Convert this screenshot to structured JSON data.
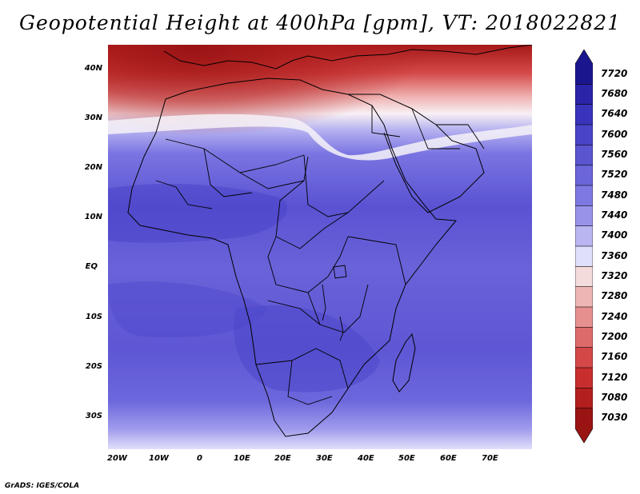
{
  "title": "Geopotential Height at 400hPa [gpm], VT: 2018022821",
  "credit": "GrADS: IGES/COLA",
  "map": {
    "lat_labels": [
      "40N",
      "30N",
      "20N",
      "10N",
      "EQ",
      "10S",
      "20S",
      "30S"
    ],
    "lon_labels": [
      "20W",
      "10W",
      "0",
      "10E",
      "20E",
      "30E",
      "40E",
      "50E",
      "60E",
      "70E"
    ]
  },
  "colorbar": {
    "labels": [
      "7720",
      "7680",
      "7640",
      "7600",
      "7560",
      "7520",
      "7480",
      "7440",
      "7400",
      "7360",
      "7320",
      "7280",
      "7240",
      "7200",
      "7160",
      "7120",
      "7080",
      "7030"
    ],
    "colors": [
      "#1c168e",
      "#2b23a8",
      "#3a33bc",
      "#4a44c8",
      "#5b55d0",
      "#6c66da",
      "#7e79e2",
      "#9994ea",
      "#b9b6f2",
      "#e0dffa",
      "#f4dcdc",
      "#efb6b6",
      "#e79090",
      "#de6b6b",
      "#d44848",
      "#c82e2e",
      "#b31e1e",
      "#9a1414"
    ]
  }
}
